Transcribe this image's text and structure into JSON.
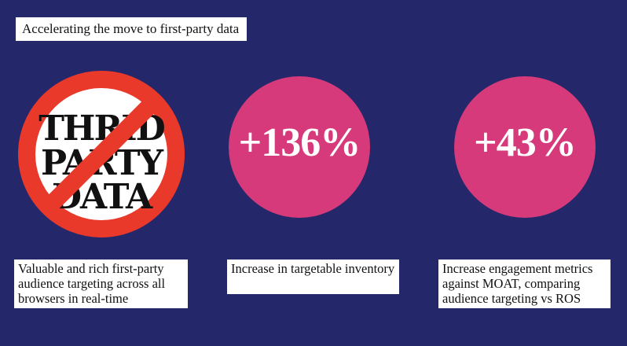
{
  "title": "Accelerating the move to first-party data",
  "no_sign": {
    "lines": [
      "THRID",
      "PARTY",
      "DATA"
    ],
    "ring_color": "#e8392b",
    "fill_color": "#ffffff"
  },
  "stats": [
    {
      "value": "+136%",
      "color": "#d63a7b"
    },
    {
      "value": "+43%",
      "color": "#d63a7b"
    }
  ],
  "captions": [
    "Valuable and rich first-party audience targeting across all browsers in real-time",
    "Increase in targetable inventory",
    "Increase engagement metrics against MOAT, comparing audience targeting vs ROS"
  ]
}
